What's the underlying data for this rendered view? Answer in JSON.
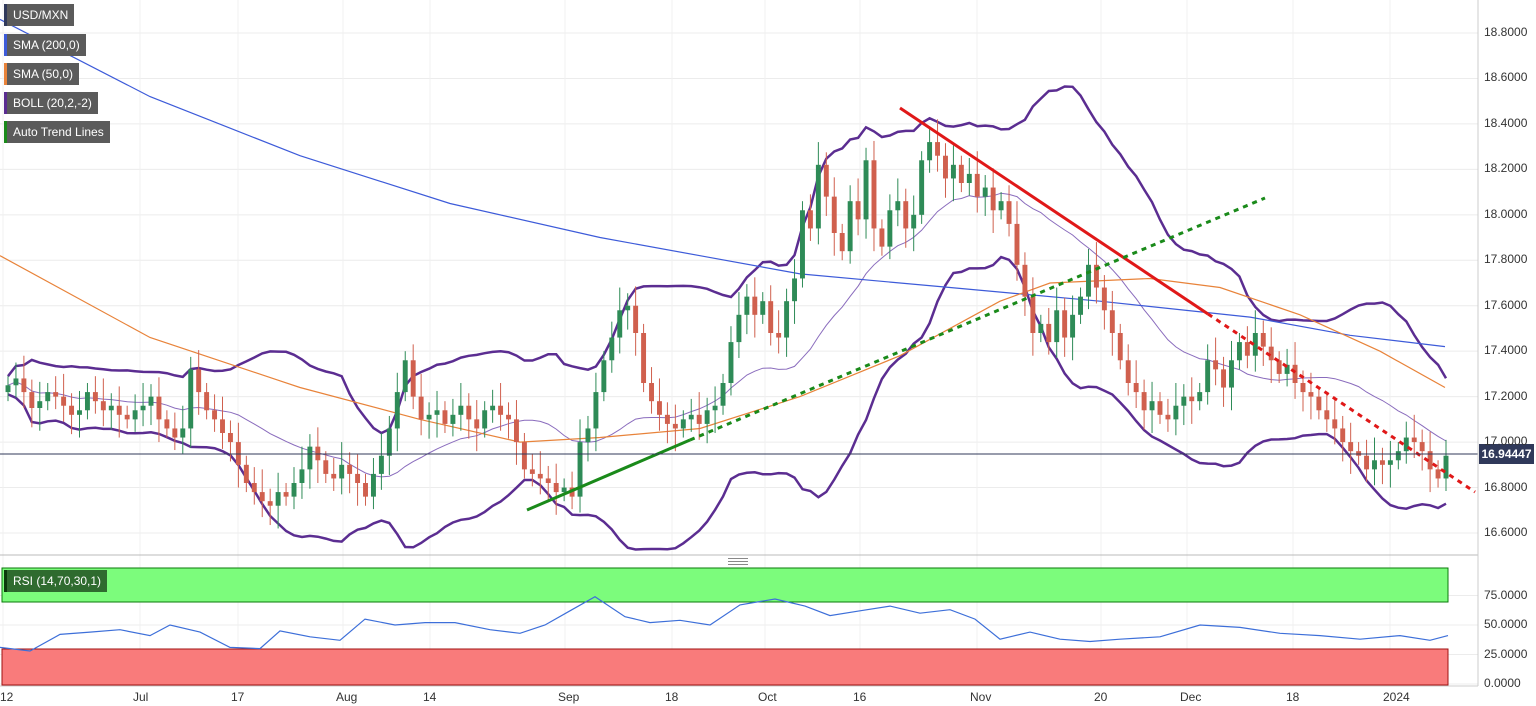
{
  "chart_data": [
    {
      "type": "candlestick",
      "title": "USD/MXN",
      "indicators": [
        {
          "name": "SMA (200,0)",
          "color": "#3d5bd9"
        },
        {
          "name": "SMA (50,0)",
          "color": "#e8833a"
        },
        {
          "name": "BOLL (20,2,-2)",
          "color": "#5b2d91"
        },
        {
          "name": "Auto Trend Lines",
          "color": "#1a8a1a"
        }
      ],
      "x_tick_labels": [
        "12",
        "Jul",
        "17",
        "Aug",
        "14",
        "Sep",
        "18",
        "Oct",
        "16",
        "Nov",
        "20",
        "Dec",
        "18",
        "2024"
      ],
      "y_tick_labels": [
        "18.8000",
        "18.6000",
        "18.4000",
        "18.2000",
        "18.0000",
        "17.8000",
        "17.6000",
        "17.4000",
        "17.2000",
        "17.0000",
        "16.8000",
        "16.6000"
      ],
      "ylim": [
        16.55,
        18.88
      ],
      "grid": true,
      "last_price": "16.94447",
      "last_price_value": 16.9445,
      "closes": [
        17.25,
        17.28,
        17.22,
        17.15,
        17.18,
        17.22,
        17.2,
        17.16,
        17.12,
        17.14,
        17.22,
        17.18,
        17.14,
        17.16,
        17.12,
        17.1,
        17.14,
        17.16,
        17.2,
        17.1,
        17.06,
        17.02,
        17.06,
        17.32,
        17.22,
        17.14,
        17.1,
        17.04,
        17.0,
        16.9,
        16.82,
        16.78,
        16.74,
        16.72,
        16.78,
        16.76,
        16.82,
        16.88,
        16.98,
        16.92,
        16.86,
        16.84,
        16.9,
        16.86,
        16.82,
        16.76,
        16.86,
        16.94,
        17.06,
        17.22,
        17.36,
        17.2,
        17.1,
        17.12,
        17.14,
        17.08,
        17.12,
        17.16,
        17.1,
        17.06,
        17.14,
        17.16,
        17.12,
        17.1,
        17.0,
        16.88,
        16.86,
        16.84,
        16.82,
        16.78,
        16.8,
        16.76,
        17.0,
        17.06,
        17.22,
        17.36,
        17.46,
        17.58,
        17.6,
        17.48,
        17.26,
        17.18,
        17.12,
        17.08,
        17.06,
        17.1,
        17.12,
        17.08,
        17.14,
        17.16,
        17.26,
        17.44,
        17.56,
        17.64,
        17.56,
        17.62,
        17.48,
        17.46,
        17.62,
        17.72,
        18.02,
        17.94,
        18.22,
        18.08,
        17.92,
        17.84,
        18.06,
        17.98,
        18.24,
        17.94,
        17.86,
        18.02,
        18.06,
        17.94,
        18.0,
        18.24,
        18.32,
        18.26,
        18.16,
        18.22,
        18.14,
        18.18,
        18.08,
        18.12,
        18.02,
        18.06,
        17.96,
        17.78,
        17.64,
        17.48,
        17.52,
        17.44,
        17.58,
        17.46,
        17.56,
        17.64,
        17.78,
        17.68,
        17.58,
        17.48,
        17.36,
        17.26,
        17.22,
        17.14,
        17.18,
        17.12,
        17.1,
        17.16,
        17.2,
        17.18,
        17.22,
        17.36,
        17.32,
        17.24,
        17.36,
        17.44,
        17.38,
        17.48,
        17.42,
        17.36,
        17.3,
        17.34,
        17.26,
        17.22,
        17.2,
        17.14,
        17.1,
        17.06,
        17.0,
        16.96,
        16.94,
        16.88,
        16.92,
        16.9,
        16.92,
        16.96,
        17.02,
        17.0,
        16.96,
        16.88,
        16.84,
        16.94
      ],
      "sma200": [
        [
          0,
          18.86
        ],
        [
          150,
          18.52
        ],
        [
          300,
          18.26
        ],
        [
          450,
          18.05
        ],
        [
          600,
          17.9
        ],
        [
          700,
          17.82
        ],
        [
          800,
          17.74
        ],
        [
          950,
          17.68
        ],
        [
          1100,
          17.62
        ],
        [
          1250,
          17.55
        ],
        [
          1350,
          17.47
        ],
        [
          1445,
          17.42
        ]
      ],
      "sma50": [
        [
          0,
          17.82
        ],
        [
          150,
          17.46
        ],
        [
          300,
          17.24
        ],
        [
          420,
          17.1
        ],
        [
          520,
          17.0
        ],
        [
          600,
          17.02
        ],
        [
          700,
          17.06
        ],
        [
          800,
          17.2
        ],
        [
          900,
          17.38
        ],
        [
          1000,
          17.62
        ],
        [
          1050,
          17.7
        ],
        [
          1150,
          17.72
        ],
        [
          1220,
          17.68
        ],
        [
          1300,
          17.56
        ],
        [
          1380,
          17.4
        ],
        [
          1445,
          17.24
        ]
      ]
    },
    {
      "type": "line",
      "title": "RSI (14,70,30,1)",
      "y_tick_labels": [
        "75.0000",
        "50.0000",
        "25.0000",
        "0.0000"
      ],
      "ylim": [
        0,
        100
      ],
      "overbought": 70,
      "oversold": 30,
      "x_tick_labels": [
        "12",
        "Jul",
        "17",
        "Aug",
        "14",
        "Sep",
        "18",
        "Oct",
        "16",
        "Nov",
        "20",
        "Dec",
        "18",
        "2024"
      ],
      "values": [
        [
          0,
          31
        ],
        [
          30,
          28
        ],
        [
          60,
          42
        ],
        [
          90,
          44
        ],
        [
          120,
          46
        ],
        [
          150,
          41
        ],
        [
          170,
          50
        ],
        [
          200,
          44
        ],
        [
          230,
          31
        ],
        [
          260,
          30
        ],
        [
          280,
          45
        ],
        [
          310,
          40
        ],
        [
          340,
          37
        ],
        [
          365,
          55
        ],
        [
          395,
          50
        ],
        [
          425,
          52
        ],
        [
          455,
          52
        ],
        [
          490,
          46
        ],
        [
          520,
          43
        ],
        [
          545,
          50
        ],
        [
          570,
          62
        ],
        [
          595,
          74
        ],
        [
          625,
          57
        ],
        [
          650,
          52
        ],
        [
          680,
          54
        ],
        [
          710,
          50
        ],
        [
          740,
          67
        ],
        [
          775,
          72
        ],
        [
          805,
          66
        ],
        [
          830,
          58
        ],
        [
          860,
          62
        ],
        [
          890,
          66
        ],
        [
          920,
          60
        ],
        [
          950,
          63
        ],
        [
          975,
          55
        ],
        [
          1000,
          38
        ],
        [
          1030,
          44
        ],
        [
          1060,
          38
        ],
        [
          1090,
          36
        ],
        [
          1120,
          38
        ],
        [
          1160,
          40
        ],
        [
          1200,
          50
        ],
        [
          1240,
          48
        ],
        [
          1280,
          43
        ],
        [
          1320,
          41
        ],
        [
          1360,
          38
        ],
        [
          1400,
          41
        ],
        [
          1430,
          37
        ],
        [
          1448,
          41
        ]
      ]
    }
  ]
}
